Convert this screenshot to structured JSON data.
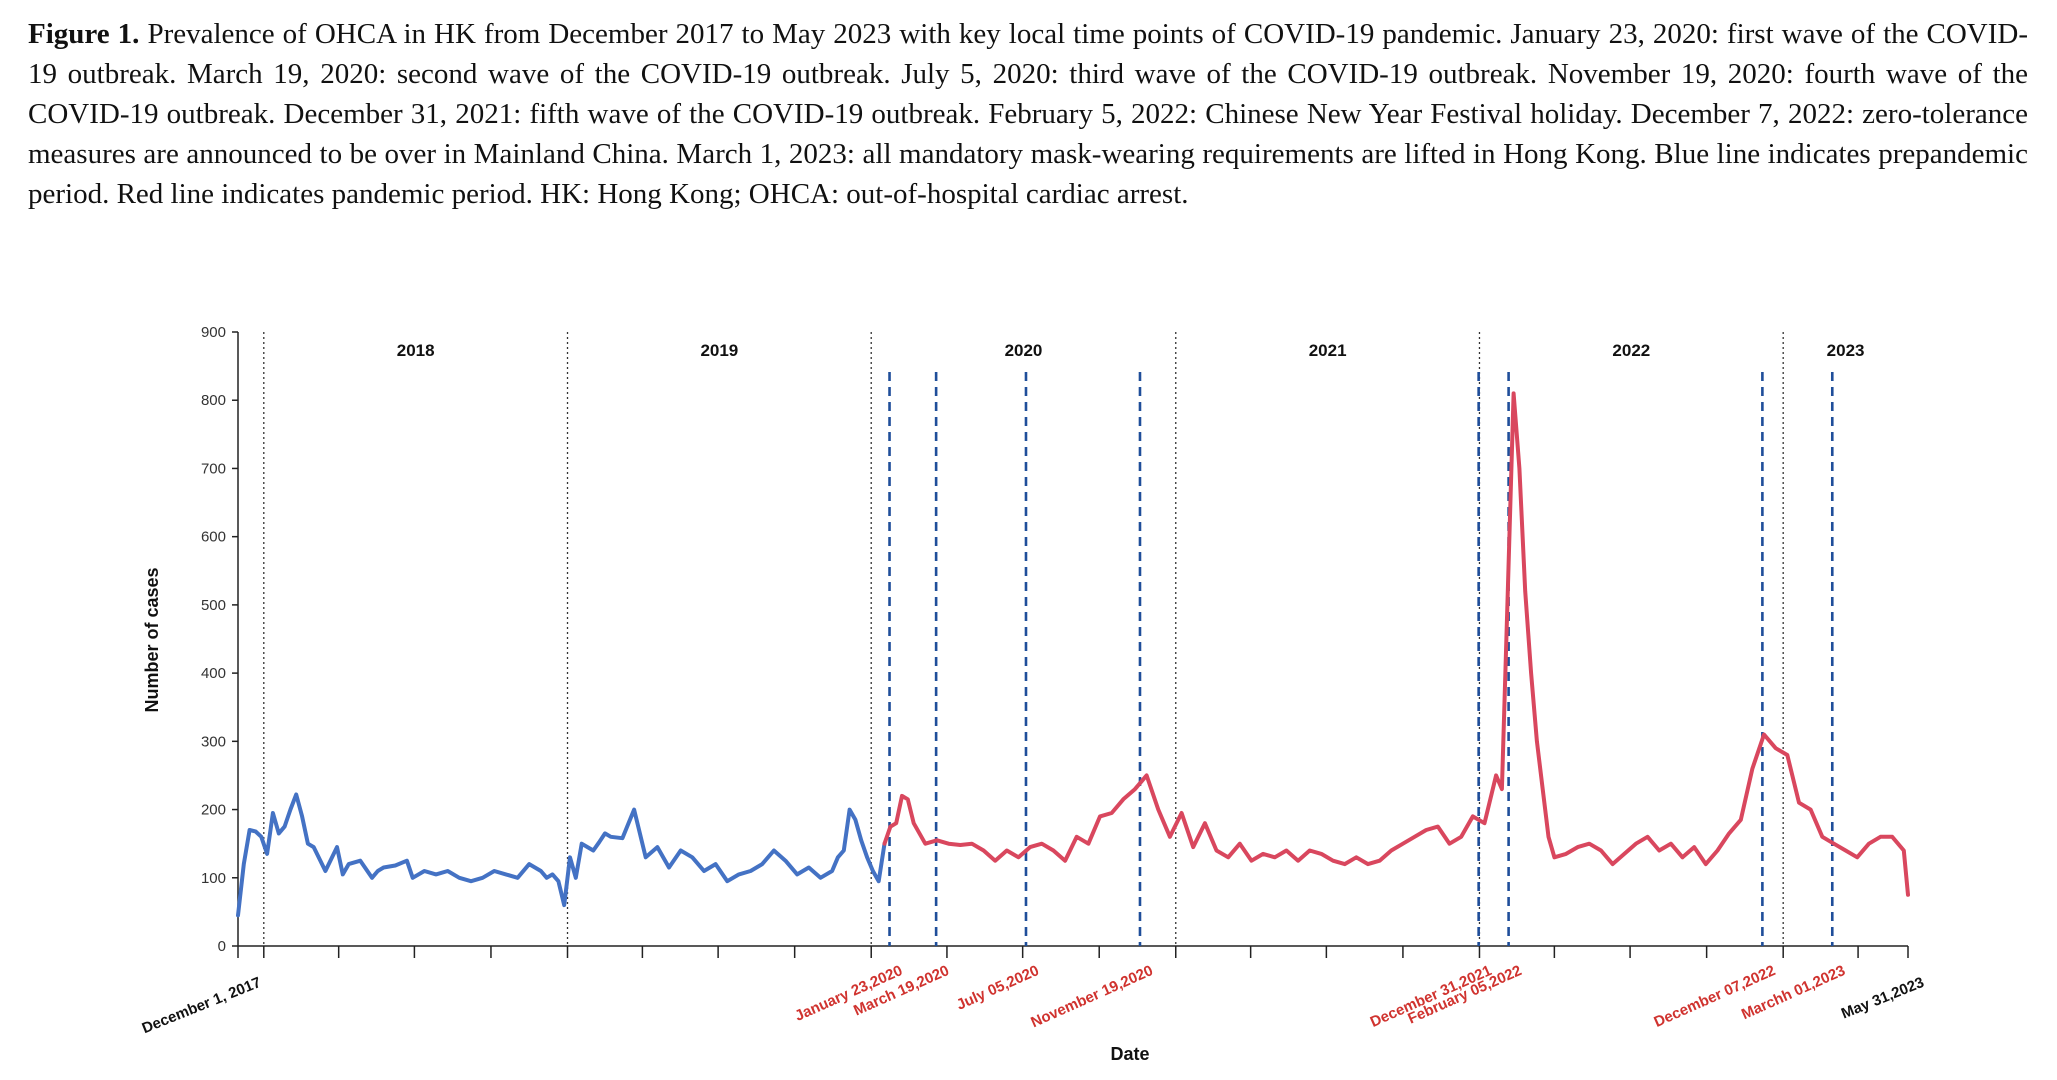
{
  "figure": {
    "label": "Figure 1.",
    "caption": "Prevalence of OHCA in HK from December 2017 to May 2023 with key local time points of COVID-19 pandemic. January 23, 2020: first wave of the COVID-19 outbreak. March 19, 2020: second wave of the COVID-19 outbreak. July 5, 2020: third wave of the COVID-19 outbreak. November 19, 2020: fourth wave of the COVID-19 outbreak. December 31, 2021: fifth wave of the COVID-19 outbreak. February 5, 2022: Chinese New Year Festival holiday. December 7, 2022: zero-tolerance measures are announced to be over in Mainland China. March 1, 2023: all mandatory mask-wearing requirements are lifted in Hong Kong. Blue line indicates prepandemic period. Red line indicates pandemic period. HK: Hong Kong; OHCA: out-of-hospital cardiac arrest."
  },
  "chart_data": {
    "type": "line",
    "xlabel": "Date",
    "ylabel": "Number of cases",
    "ylim": [
      0,
      900
    ],
    "yticks": [
      0,
      100,
      200,
      300,
      400,
      500,
      600,
      700,
      800,
      900
    ],
    "grid": false,
    "x_start_label": "December 1, 2017",
    "x_end_label": "May 31,2023",
    "year_labels": [
      "2018",
      "2019",
      "2020",
      "2021",
      "2022",
      "2023"
    ],
    "event_labels": [
      "January 23,2020",
      "March 19,2020",
      "July 05,2020",
      "November 19,2020",
      "December 31,2021",
      "February 05,2022",
      "December 07,2022",
      "Marchh 01,2023"
    ],
    "colors": {
      "prepandemic": "#4472c4",
      "pandemic": "#d9475e",
      "event_line": "#1f4e9a",
      "event_label": "#d0332f"
    },
    "series": [
      {
        "color": "prepandemic",
        "x": [
          "2017-12-01",
          "2017-12-08",
          "2017-12-15",
          "2017-12-22",
          "2017-12-29",
          "2018-01-05",
          "2018-01-12",
          "2018-01-19",
          "2018-01-26",
          "2018-02-02",
          "2018-02-09",
          "2018-02-16",
          "2018-02-23",
          "2018-03-02",
          "2018-03-16",
          "2018-03-30",
          "2018-04-06",
          "2018-04-13",
          "2018-04-27",
          "2018-05-11",
          "2018-05-18",
          "2018-05-25",
          "2018-06-08",
          "2018-06-22",
          "2018-06-29",
          "2018-07-13",
          "2018-07-27",
          "2018-08-10",
          "2018-08-24",
          "2018-09-07",
          "2018-09-21",
          "2018-10-05",
          "2018-10-19",
          "2018-11-02",
          "2018-11-16",
          "2018-11-30",
          "2018-12-07",
          "2018-12-14",
          "2018-12-21",
          "2018-12-28",
          "2019-01-04",
          "2019-01-11",
          "2019-01-18",
          "2019-01-25",
          "2019-02-01",
          "2019-02-08",
          "2019-02-15",
          "2019-02-22",
          "2019-03-08",
          "2019-03-22",
          "2019-04-05",
          "2019-04-19",
          "2019-05-03",
          "2019-05-17",
          "2019-05-31",
          "2019-06-14",
          "2019-06-28",
          "2019-07-12",
          "2019-07-26",
          "2019-08-09",
          "2019-08-23",
          "2019-09-06",
          "2019-09-20",
          "2019-10-04",
          "2019-10-18",
          "2019-11-01",
          "2019-11-15",
          "2019-11-22",
          "2019-11-29",
          "2019-12-06",
          "2019-12-13",
          "2019-12-20",
          "2019-12-27",
          "2020-01-03",
          "2020-01-10",
          "2020-01-17"
        ],
        "values": [
          45,
          120,
          170,
          168,
          160,
          135,
          195,
          165,
          175,
          200,
          222,
          190,
          150,
          145,
          110,
          145,
          105,
          120,
          125,
          100,
          110,
          115,
          118,
          125,
          100,
          110,
          105,
          110,
          100,
          95,
          100,
          110,
          105,
          100,
          120,
          110,
          100,
          105,
          95,
          60,
          130,
          100,
          150,
          145,
          140,
          152,
          165,
          160,
          158,
          200,
          130,
          145,
          115,
          140,
          130,
          110,
          120,
          95,
          105,
          110,
          120,
          140,
          125,
          105,
          115,
          100,
          110,
          130,
          140,
          200,
          185,
          155,
          130,
          110,
          95,
          150
        ]
      },
      {
        "color": "pandemic",
        "x": [
          "2020-01-17",
          "2020-01-24",
          "2020-01-31",
          "2020-02-07",
          "2020-02-14",
          "2020-02-21",
          "2020-03-06",
          "2020-03-20",
          "2020-04-03",
          "2020-04-17",
          "2020-05-01",
          "2020-05-15",
          "2020-05-29",
          "2020-06-12",
          "2020-06-26",
          "2020-07-10",
          "2020-07-24",
          "2020-08-07",
          "2020-08-21",
          "2020-09-04",
          "2020-09-18",
          "2020-10-02",
          "2020-10-16",
          "2020-10-30",
          "2020-11-13",
          "2020-11-27",
          "2020-12-11",
          "2020-12-25",
          "2021-01-08",
          "2021-01-22",
          "2021-02-05",
          "2021-02-19",
          "2021-03-05",
          "2021-03-19",
          "2021-04-02",
          "2021-04-16",
          "2021-04-30",
          "2021-05-14",
          "2021-05-28",
          "2021-06-11",
          "2021-06-25",
          "2021-07-09",
          "2021-07-23",
          "2021-08-06",
          "2021-08-20",
          "2021-09-03",
          "2021-09-17",
          "2021-10-01",
          "2021-10-15",
          "2021-10-29",
          "2021-11-12",
          "2021-11-26",
          "2021-12-10",
          "2021-12-24",
          "2022-01-07",
          "2022-01-21",
          "2022-01-28",
          "2022-02-04",
          "2022-02-11",
          "2022-02-18",
          "2022-02-25",
          "2022-03-04",
          "2022-03-11",
          "2022-03-18",
          "2022-03-25",
          "2022-04-01",
          "2022-04-15",
          "2022-04-29",
          "2022-05-13",
          "2022-05-27",
          "2022-06-10",
          "2022-06-24",
          "2022-07-08",
          "2022-07-22",
          "2022-08-05",
          "2022-08-19",
          "2022-09-02",
          "2022-09-16",
          "2022-09-30",
          "2022-10-14",
          "2022-10-28",
          "2022-11-11",
          "2022-11-25",
          "2022-12-09",
          "2022-12-23",
          "2023-01-06",
          "2023-01-20",
          "2023-02-03",
          "2023-02-17",
          "2023-03-03",
          "2023-03-17",
          "2023-03-31",
          "2023-04-14",
          "2023-04-28",
          "2023-05-12",
          "2023-05-26",
          "2023-05-31"
        ],
        "values": [
          150,
          175,
          180,
          220,
          215,
          180,
          150,
          155,
          150,
          148,
          150,
          140,
          125,
          140,
          130,
          145,
          150,
          140,
          125,
          160,
          150,
          190,
          195,
          215,
          230,
          250,
          200,
          160,
          195,
          145,
          180,
          140,
          130,
          150,
          125,
          135,
          130,
          140,
          125,
          140,
          135,
          125,
          120,
          130,
          120,
          125,
          140,
          150,
          160,
          170,
          175,
          150,
          160,
          190,
          180,
          250,
          230,
          520,
          810,
          700,
          520,
          400,
          300,
          230,
          160,
          130,
          135,
          145,
          150,
          140,
          120,
          135,
          150,
          160,
          140,
          150,
          130,
          145,
          120,
          140,
          165,
          185,
          260,
          310,
          290,
          280,
          210,
          200,
          160,
          150,
          140,
          130,
          150,
          160,
          160,
          140,
          75
        ]
      }
    ],
    "year_boundaries": [
      "2018-01-01",
      "2019-01-01",
      "2020-01-01",
      "2021-01-01",
      "2022-01-01",
      "2023-01-01"
    ],
    "events": [
      "2020-01-23",
      "2020-03-19",
      "2020-07-05",
      "2020-11-19",
      "2021-12-31",
      "2022-02-05",
      "2022-12-07",
      "2023-03-01"
    ]
  }
}
